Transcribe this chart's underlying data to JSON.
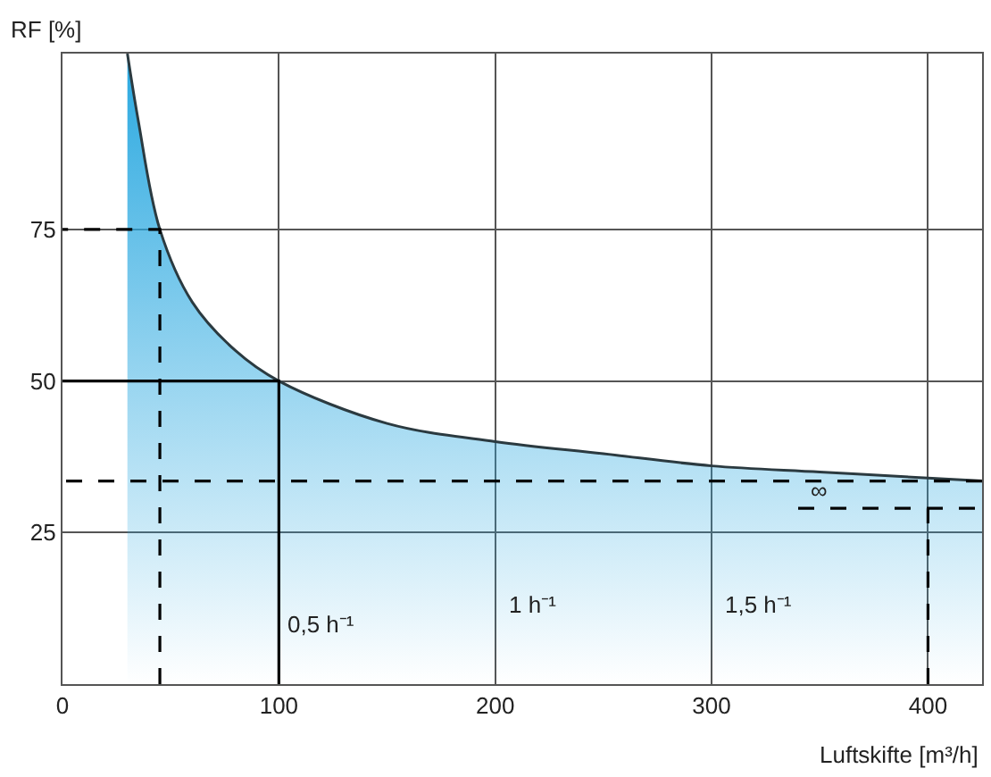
{
  "chart_data": {
    "type": "area",
    "xlabel": "Luftskifte [m³/h]",
    "ylabel": "RF [%]",
    "xlim": [
      0,
      425
    ],
    "ylim": [
      0,
      104
    ],
    "xticks": [
      0,
      100,
      200,
      300,
      400
    ],
    "yticks": [
      25,
      50,
      75
    ],
    "grid": true,
    "series": [
      {
        "color": "#29a8e0",
        "x": [
          30,
          35,
          45,
          60,
          80,
          100,
          150,
          200,
          250,
          300,
          350,
          400,
          425
        ],
        "values": [
          104,
          93,
          75,
          63,
          55,
          50,
          43,
          40,
          38,
          36,
          35,
          34,
          33.5
        ]
      },
      {
        "type": "line",
        "color": "#000000",
        "line_style": "dashed",
        "x": [
          45,
          45,
          0
        ],
        "values": [
          0,
          75,
          75
        ]
      },
      {
        "type": "line",
        "color": "#000000",
        "line_style": "solid",
        "x": [
          100,
          100,
          0
        ],
        "values": [
          0,
          50,
          50
        ]
      },
      {
        "type": "line",
        "color": "#000000",
        "line_style": "dashed",
        "x": [
          425,
          0
        ],
        "values": [
          33.5,
          33.5
        ]
      },
      {
        "type": "line",
        "color": "#000000",
        "line_style": "dashed",
        "x": [
          400,
          400
        ],
        "values": [
          0,
          29
        ]
      },
      {
        "type": "line",
        "color": "#000000",
        "line_style": "dashed",
        "x": [
          340,
          425
        ],
        "values": [
          29,
          29
        ]
      }
    ],
    "annotations": [
      {
        "text": "0,5 h⁻¹",
        "x": 100,
        "y": 10
      },
      "1 h⁻¹",
      "1,5 h⁻¹",
      "∞"
    ]
  }
}
